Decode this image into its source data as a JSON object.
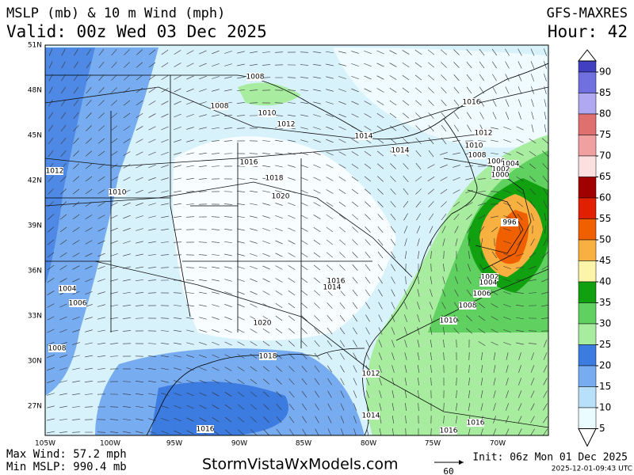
{
  "header": {
    "title": "MSLP (mb) & 10 m Wind (mph)",
    "valid": "Valid: 00z Wed 03 Dec 2025",
    "model": "GFS-MAXRES",
    "hour": "Hour: 42"
  },
  "map": {
    "lat_labels": [
      "51N",
      "48N",
      "45N",
      "42N",
      "39N",
      "36N",
      "33N",
      "30N",
      "27N"
    ],
    "lon_labels": [
      "105W",
      "100W",
      "95W",
      "90W",
      "85W",
      "80W",
      "75W",
      "70W"
    ],
    "isobar_labels": [
      "1008",
      "1008",
      "1010",
      "1012",
      "1014",
      "1016",
      "1012",
      "1010",
      "1008",
      "1006",
      "1004",
      "1002",
      "1000",
      "1014",
      "1016",
      "1018",
      "1020",
      "1012",
      "1010",
      "996",
      "1002",
      "1004",
      "1006",
      "1008",
      "1010",
      "1016",
      "1014",
      "1020",
      "1018",
      "1012",
      "1014",
      "1016",
      "1016",
      "1016",
      "1004",
      "1006",
      "1008"
    ]
  },
  "colorbar": {
    "ticks": [
      90,
      85,
      80,
      75,
      70,
      65,
      60,
      55,
      50,
      45,
      40,
      35,
      30,
      25,
      20,
      15,
      10,
      5
    ],
    "colors": [
      "#4040c0",
      "#7070e0",
      "#b0a8f0",
      "#e07070",
      "#f0a0a0",
      "#fce0e0",
      "#a00000",
      "#e02000",
      "#f06000",
      "#f8b040",
      "#fcf4a8",
      "#10a010",
      "#60d060",
      "#a8eca0",
      "#3c7ce0",
      "#78acf0",
      "#b8e0fa",
      "#eafcff"
    ]
  },
  "footer": {
    "max_wind": "Max Wind: 57.2 mph",
    "min_mslp": "Min MSLP: 990.4 mb",
    "site": "StormVistaWxModels.com",
    "scale_label": "60",
    "init": "Init: 06z Mon 01 Dec 2025",
    "timestamp": "2025-12-01-09:43 UTC"
  }
}
